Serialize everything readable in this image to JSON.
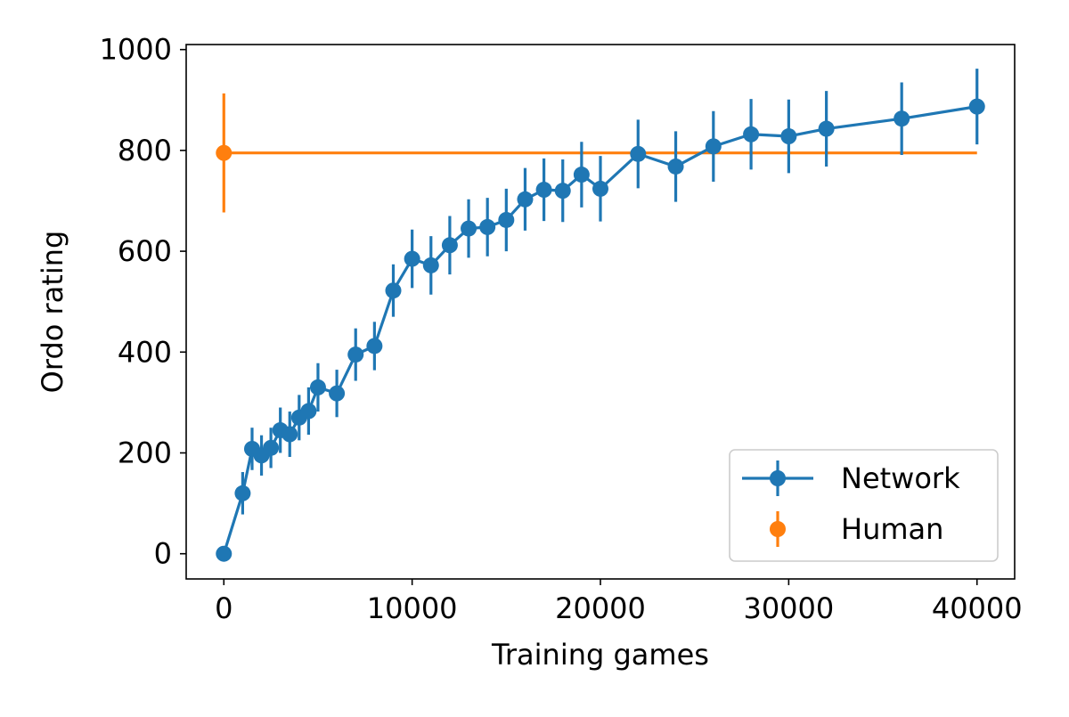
{
  "chart_data": {
    "type": "line",
    "title": "",
    "xlabel": "Training games",
    "ylabel": "Ordo rating",
    "xlim": [
      -2000,
      42000
    ],
    "ylim": [
      -50,
      1010
    ],
    "xticks": [
      0,
      10000,
      20000,
      30000,
      40000
    ],
    "yticks": [
      0,
      200,
      400,
      600,
      800,
      1000
    ],
    "grid": false,
    "legend_position": "lower-right",
    "series": [
      {
        "name": "Network",
        "color": "#1f77b4",
        "style": "line-markers-errorbars",
        "points": [
          {
            "x": 0,
            "y": 0,
            "err": 0
          },
          {
            "x": 1000,
            "y": 120,
            "err": 42
          },
          {
            "x": 1500,
            "y": 208,
            "err": 42
          },
          {
            "x": 2000,
            "y": 195,
            "err": 40
          },
          {
            "x": 2500,
            "y": 210,
            "err": 40
          },
          {
            "x": 3000,
            "y": 245,
            "err": 45
          },
          {
            "x": 3500,
            "y": 237,
            "err": 45
          },
          {
            "x": 4000,
            "y": 270,
            "err": 45
          },
          {
            "x": 4500,
            "y": 283,
            "err": 47
          },
          {
            "x": 5000,
            "y": 330,
            "err": 48
          },
          {
            "x": 6000,
            "y": 318,
            "err": 47
          },
          {
            "x": 7000,
            "y": 395,
            "err": 52
          },
          {
            "x": 8000,
            "y": 412,
            "err": 48
          },
          {
            "x": 9000,
            "y": 522,
            "err": 52
          },
          {
            "x": 10000,
            "y": 585,
            "err": 58
          },
          {
            "x": 11000,
            "y": 572,
            "err": 58
          },
          {
            "x": 12000,
            "y": 612,
            "err": 58
          },
          {
            "x": 13000,
            "y": 645,
            "err": 58
          },
          {
            "x": 14000,
            "y": 648,
            "err": 58
          },
          {
            "x": 15000,
            "y": 662,
            "err": 62
          },
          {
            "x": 16000,
            "y": 703,
            "err": 62
          },
          {
            "x": 17000,
            "y": 722,
            "err": 62
          },
          {
            "x": 18000,
            "y": 720,
            "err": 62
          },
          {
            "x": 19000,
            "y": 752,
            "err": 65
          },
          {
            "x": 20000,
            "y": 724,
            "err": 65
          },
          {
            "x": 22000,
            "y": 793,
            "err": 68
          },
          {
            "x": 24000,
            "y": 768,
            "err": 70
          },
          {
            "x": 26000,
            "y": 808,
            "err": 70
          },
          {
            "x": 28000,
            "y": 832,
            "err": 70
          },
          {
            "x": 30000,
            "y": 828,
            "err": 73
          },
          {
            "x": 32000,
            "y": 843,
            "err": 75
          },
          {
            "x": 36000,
            "y": 863,
            "err": 72
          },
          {
            "x": 40000,
            "y": 887,
            "err": 75
          }
        ]
      },
      {
        "name": "Human",
        "color": "#ff7f0e",
        "style": "markers-errorbars-with-reference-line",
        "points": [
          {
            "x": 0,
            "y": 795,
            "err": 118
          }
        ],
        "reference_line": {
          "y": 795,
          "x_start": 0,
          "x_end": 40000
        }
      }
    ]
  }
}
